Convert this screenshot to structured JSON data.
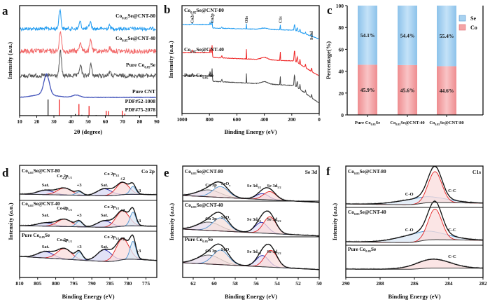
{
  "figure": {
    "panel_letters": [
      "a",
      "b",
      "c",
      "d",
      "e",
      "f"
    ],
    "colors": {
      "cnt80": "#1e9af0",
      "cnt40": "#f26a6a",
      "pure": "#555555",
      "cnt": "#4455bb",
      "pdf52": "#ee1111",
      "pdf75": "#111111",
      "se_bar": "#a8d2f0",
      "co_bar": "#f4a4a6",
      "envelope": "#111111",
      "red_fit": "#e32020",
      "blue_fit": "#2020aa",
      "light_blue_fit": "#4a90d0",
      "grey_fit": "#555555"
    }
  },
  "chart_data": [
    {
      "id": "a",
      "type": "line",
      "title": "",
      "xlabel": "2θ (degree)",
      "ylabel": "Intensity (a.u.)",
      "xlim": [
        10,
        90
      ],
      "xticks": [
        10,
        20,
        30,
        40,
        50,
        60,
        70,
        80,
        90
      ],
      "series": [
        {
          "name": "Co0.85Se@CNT-80",
          "label_main": "Co",
          "label_sub": "0.85",
          "label_tail": "Se@CNT-80",
          "color": "#1e9af0",
          "peaks": [
            [
              33.5,
              1.0
            ],
            [
              45.3,
              0.35
            ],
            [
              51.2,
              0.35
            ],
            [
              62.5,
              0.15
            ]
          ]
        },
        {
          "name": "Co0.85Se@CNT-40",
          "label_main": "Co",
          "label_sub": "0.85",
          "label_tail": "Se@CNT-40",
          "color": "#f26a6a",
          "peaks": [
            [
              33.8,
              1.0
            ],
            [
              45.5,
              0.45
            ],
            [
              51.5,
              0.5
            ],
            [
              62.5,
              0.15
            ]
          ]
        },
        {
          "name": "Pure Co0.85Se",
          "label_main": "Pure Co",
          "label_sub": "0.85",
          "label_tail": "Se",
          "color": "#555555",
          "peaks": [
            [
              33.8,
              1.0
            ],
            [
              45.5,
              0.45
            ],
            [
              51.5,
              0.45
            ],
            [
              62.5,
              0.15
            ]
          ]
        },
        {
          "name": "Pure CNT",
          "label_main": "Pure CNT",
          "label_sub": "",
          "label_tail": "",
          "color": "#4455bb",
          "peaks": [
            [
              25.8,
              1.0
            ],
            [
              43.0,
              0.12
            ]
          ]
        }
      ],
      "reference_lines": [
        {
          "name": "PDF#52-1008",
          "color": "#ee1111",
          "positions": [
            33.1,
            44.6,
            50.5,
            60.5,
            61.8,
            69.9,
            71.3
          ],
          "heights": [
            1.0,
            0.72,
            0.6,
            0.3,
            0.28,
            0.3,
            0.12
          ]
        },
        {
          "name": "PDF#75-2078",
          "color": "#111111",
          "positions": [
            26.6,
            42.5,
            44.5,
            46.3,
            54.6,
            59.9,
            77.6,
            83.8
          ],
          "heights": [
            1.0,
            0.1,
            0.06,
            0.05,
            0.04,
            0.03,
            0.03,
            0.03
          ]
        }
      ]
    },
    {
      "id": "b",
      "type": "line",
      "title": "",
      "xlabel": "Binding Energy (eV)",
      "ylabel": "Intensity (a.u.)",
      "xlim": [
        1000,
        0
      ],
      "xticks": [
        1000,
        800,
        600,
        400,
        200,
        0
      ],
      "annotations": [
        "Co2s",
        "Co2p",
        "O1s",
        "C1s",
        "Se3d"
      ],
      "annotation_positions": [
        925,
        780,
        531,
        284,
        55
      ],
      "series": [
        {
          "name": "Co0.85Se@CNT-80",
          "label_main": "Co",
          "label_sub": "0.85",
          "label_tail": "Se@CNT-80",
          "color": "#1e9af0"
        },
        {
          "name": "Co0.85Se@CNT-40",
          "label_main": "Co",
          "label_sub": "0.85",
          "label_tail": "Se@CNT-40",
          "color": "#ee2222"
        },
        {
          "name": "Pure Co0.85Se",
          "label_main": "Pure Co",
          "label_sub": "0.85",
          "label_tail": "Se",
          "color": "#444444"
        }
      ]
    },
    {
      "id": "c",
      "type": "bar",
      "stacked": true,
      "title": "",
      "xlabel": "",
      "ylabel": "Percentage(%)",
      "ylim": [
        0,
        100
      ],
      "yticks": [
        0,
        20,
        40,
        60,
        80,
        100
      ],
      "categories": [
        {
          "main": "Pure Co",
          "sub": "0.85",
          "tail": "Se"
        },
        {
          "main": "Co",
          "sub": "0.85",
          "tail": "Se@CNT-40"
        },
        {
          "main": "Co",
          "sub": "0.85",
          "tail": "Se@CNT-80"
        }
      ],
      "category_names": [
        "Pure Co0.85Se",
        "Co0.85Se@CNT-40",
        "Co0.85Se@CNT-80"
      ],
      "series": [
        {
          "name": "Co",
          "color": "#f4a4a6",
          "values": [
            45.9,
            45.6,
            44.6
          ],
          "labels": [
            "45.9%",
            "45.6%",
            "44.6%"
          ]
        },
        {
          "name": "Se",
          "color": "#a8d2f0",
          "values": [
            54.1,
            54.4,
            55.4
          ],
          "labels": [
            "54.1%",
            "54.4%",
            "55.4%"
          ]
        }
      ],
      "legend": {
        "position": "top-right",
        "entries": [
          "Se",
          "Co"
        ]
      }
    },
    {
      "id": "d",
      "type": "line",
      "title": "Co 2p",
      "xlabel": "Binding Energy (eV)",
      "ylabel": "Intensity (a.u.)",
      "xlim": [
        810,
        772
      ],
      "xticks": [
        810,
        805,
        800,
        795,
        790,
        785,
        780,
        775
      ],
      "samples": [
        {
          "name": "Co0.85Se@CNT-80",
          "label_main": "Co",
          "label_sub": "0.85",
          "label_tail": "Se@CNT-80",
          "components": [
            {
              "label": "Sat.",
              "center": 802.8,
              "width": 2.2,
              "amp": 0.22,
              "color": "#2020aa",
              "fill": "#d8d8f4"
            },
            {
              "label": "+2",
              "center": 797.6,
              "width": 2.0,
              "amp": 0.35,
              "color": "#e32020",
              "fill": "#f9dcdc"
            },
            {
              "label": "+3",
              "center": 793.5,
              "width": 0.9,
              "amp": 0.18,
              "color": "#4a90d0",
              "fill": "#dce8f6"
            },
            {
              "label": "Sat.",
              "center": 786.5,
              "width": 2.0,
              "amp": 0.35,
              "color": "#2020aa",
              "fill": "#d8d8f4"
            },
            {
              "label": "+2",
              "center": 781.5,
              "width": 1.8,
              "amp": 0.62,
              "color": "#e32020",
              "fill": "#f9dcdc"
            },
            {
              "label": "+3",
              "center": 778.6,
              "width": 0.8,
              "amp": 0.4,
              "color": "#4a90d0",
              "fill": "#dce8f6"
            }
          ],
          "orbital_labels": [
            {
              "text": "Co 2p",
              "sub": "1/2",
              "x": 797.6
            },
            {
              "text": "Co 2p",
              "sub": "3/2",
              "x": 784.5
            }
          ]
        },
        {
          "name": "Co0.85Se@CNT-40",
          "label_main": "Co",
          "label_sub": "0.85",
          "label_tail": "Se@CNT-40",
          "components": [
            {
              "label": "Sat.",
              "center": 802.8,
              "width": 2.2,
              "amp": 0.18,
              "color": "#2020aa",
              "fill": "#d8d8f4"
            },
            {
              "label": "+2",
              "center": 797.6,
              "width": 2.0,
              "amp": 0.4,
              "color": "#e32020",
              "fill": "#f9dcdc"
            },
            {
              "label": "+3",
              "center": 793.5,
              "width": 0.9,
              "amp": 0.3,
              "color": "#4a90d0",
              "fill": "#dce8f6"
            },
            {
              "label": "Sat.",
              "center": 786.5,
              "width": 2.0,
              "amp": 0.35,
              "color": "#2020aa",
              "fill": "#d8d8f4"
            },
            {
              "label": "+2",
              "center": 781.5,
              "width": 1.8,
              "amp": 0.85,
              "color": "#e32020",
              "fill": "#f9dcdc"
            },
            {
              "label": "+3",
              "center": 778.6,
              "width": 0.8,
              "amp": 0.75,
              "color": "#4a90d0",
              "fill": "#dce8f6"
            }
          ],
          "orbital_labels": [
            {
              "text": "Co 2p",
              "sub": "1/2",
              "x": 797.6
            },
            {
              "text": "Co 2p",
              "sub": "3/2",
              "x": 784.5
            }
          ]
        },
        {
          "name": "Pure Co0.85Se",
          "label_main": "Pure Co",
          "label_sub": "0.85",
          "label_tail": "Se",
          "components": [
            {
              "label": "Sat.",
              "center": 802.8,
              "width": 2.2,
              "amp": 0.3,
              "color": "#2020aa",
              "fill": "#d8d8f4"
            },
            {
              "label": "+2",
              "center": 797.6,
              "width": 2.0,
              "amp": 0.5,
              "color": "#e32020",
              "fill": "#f9dcdc"
            },
            {
              "label": "+3",
              "center": 793.5,
              "width": 0.9,
              "amp": 0.38,
              "color": "#4a90d0",
              "fill": "#dce8f6"
            },
            {
              "label": "Sat.",
              "center": 786.5,
              "width": 2.0,
              "amp": 0.55,
              "color": "#2020aa",
              "fill": "#d8d8f4"
            },
            {
              "label": "+2",
              "center": 781.5,
              "width": 1.8,
              "amp": 1.0,
              "color": "#e32020",
              "fill": "#f9dcdc"
            },
            {
              "label": "+3",
              "center": 778.6,
              "width": 0.8,
              "amp": 0.85,
              "color": "#4a90d0",
              "fill": "#dce8f6"
            }
          ],
          "orbital_labels": [
            {
              "text": "Co 2p",
              "sub": "1/2",
              "x": 797.6
            },
            {
              "text": "Co 2p",
              "sub": "3/2",
              "x": 784.5
            }
          ]
        }
      ]
    },
    {
      "id": "e",
      "type": "line",
      "title": "Se 3d",
      "xlabel": "Binding Energy (eV)",
      "ylabel": "Intensity (a.u.)",
      "xlim": [
        63,
        50
      ],
      "xticks": [
        62,
        60,
        58,
        56,
        54,
        52,
        50
      ],
      "samples": [
        {
          "name": "Co0.85Se@CNT-80",
          "label_main": "Co",
          "label_sub": "0.85",
          "label_tail": "Se@CNT-80",
          "components": [
            {
              "label": "Co 3p",
              "center": 60.5,
              "width": 1.1,
              "amp": 0.35,
              "color": "#555555",
              "fill": "#e8dcec"
            },
            {
              "label": "SeOx",
              "center": 59.4,
              "width": 0.75,
              "amp": 0.55,
              "color": "#4a90d0",
              "fill": "#f6e0dc"
            },
            {
              "label": "Se 3d3/2",
              "center": 55.4,
              "width": 0.6,
              "amp": 0.3,
              "color": "#2020aa",
              "fill": "#e4e0f6"
            },
            {
              "label": "Se 3d5/2",
              "center": 54.7,
              "width": 0.6,
              "amp": 0.42,
              "color": "#e32020",
              "fill": "#f9dcdc"
            }
          ]
        },
        {
          "name": "Co0.85Se@CNT-40",
          "label_main": "Co",
          "label_sub": "0.85",
          "label_tail": "Se@CNT-40",
          "components": [
            {
              "label": "Co 3p",
              "center": 60.5,
              "width": 1.1,
              "amp": 0.35,
              "color": "#555555",
              "fill": "#e8dcec"
            },
            {
              "label": "SeOx",
              "center": 59.4,
              "width": 0.75,
              "amp": 0.55,
              "color": "#4a90d0",
              "fill": "#f6e0dc"
            },
            {
              "label": "Se 3d3/2",
              "center": 55.5,
              "width": 0.6,
              "amp": 0.45,
              "color": "#2020aa",
              "fill": "#e4e0f6"
            },
            {
              "label": "Se 3d5/2",
              "center": 54.7,
              "width": 0.6,
              "amp": 0.7,
              "color": "#e32020",
              "fill": "#f9dcdc"
            }
          ]
        },
        {
          "name": "Pure Co0.85Se",
          "label_main": "Pure Co",
          "label_sub": "0.85",
          "label_tail": "Se",
          "components": [
            {
              "label": "Co 3p",
              "center": 60.5,
              "width": 1.1,
              "amp": 0.4,
              "color": "#555555",
              "fill": "#e8dcec"
            },
            {
              "label": "SeOx",
              "center": 59.4,
              "width": 0.75,
              "amp": 0.65,
              "color": "#4a90d0",
              "fill": "#f6e0dc"
            },
            {
              "label": "Se 3d3/2",
              "center": 55.4,
              "width": 0.6,
              "amp": 0.5,
              "color": "#2020aa",
              "fill": "#e4e0f6"
            },
            {
              "label": "Se 3d5/2",
              "center": 54.6,
              "width": 0.6,
              "amp": 0.75,
              "color": "#e32020",
              "fill": "#f9dcdc"
            }
          ]
        }
      ]
    },
    {
      "id": "f",
      "type": "line",
      "title": "C1s",
      "xlabel": "Binding Energy (eV)",
      "ylabel": "Intensity (a.u.)",
      "xlim": [
        290,
        282
      ],
      "xticks": [
        290,
        288,
        286,
        284,
        282
      ],
      "samples": [
        {
          "name": "Co0.85Se@CNT-80",
          "label_main": "Co",
          "label_sub": "0.85",
          "label_tail": "Se@CNT-80",
          "components": [
            {
              "label": "C-O",
              "center": 285.5,
              "width": 1.3,
              "amp": 0.2,
              "color": "#4a90d0",
              "fill": "#dce8f6"
            },
            {
              "label": "C-C",
              "center": 284.8,
              "width": 0.4,
              "amp": 1.0,
              "color": "#e32020",
              "fill": "#f9dcdc"
            }
          ]
        },
        {
          "name": "Co0.85Se@CNT-40",
          "label_main": "Co",
          "label_sub": "0.85",
          "label_tail": "Se@CNT-40",
          "components": [
            {
              "label": "C-O",
              "center": 285.5,
              "width": 1.3,
              "amp": 0.28,
              "color": "#4a90d0",
              "fill": "#dce8f6"
            },
            {
              "label": "C-C",
              "center": 284.8,
              "width": 0.4,
              "amp": 0.95,
              "color": "#e32020",
              "fill": "#f9dcdc"
            }
          ]
        },
        {
          "name": "Pure Co0.85Se",
          "label_main": "Pure Co",
          "label_sub": "0.85",
          "label_tail": "Se",
          "components": [
            {
              "label": "C-C",
              "center": 284.9,
              "width": 1.0,
              "amp": 0.45,
              "color": "#7a2020",
              "fill": "#f9dcdc"
            }
          ]
        }
      ]
    }
  ]
}
